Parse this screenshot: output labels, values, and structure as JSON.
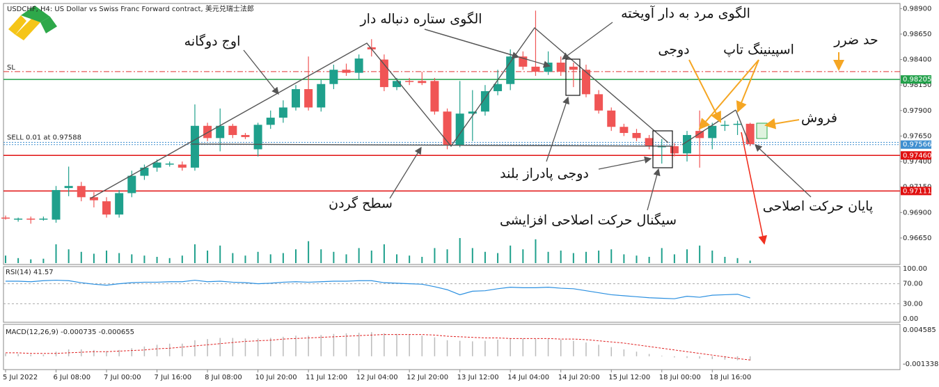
{
  "header": {
    "title": "USDCHF, H4:  US Dollar vs Swiss Franc Forward contract, 美元兑瑞士法郎"
  },
  "annotations": [
    "اوج دوگانه",
    "الگوی ستاره دنباله دار",
    "الگوی مرد به دار آویخته",
    "حد ضرر",
    "دوجی",
    "اسپینینگ تاپ",
    "فروش",
    "دوجی پادراز بلند",
    "سطح گردن",
    "پایان حرکت اصلاحی",
    "سیگنال حرکت اصلاحی افزایشی"
  ],
  "chart_data": {
    "type": "candlestick",
    "categories": [
      "5 Jul 2022",
      null,
      null,
      null,
      "6 Jul 08:00",
      null,
      null,
      null,
      "7 Jul 00:00",
      null,
      null,
      null,
      "7 Jul 16:00",
      null,
      null,
      null,
      "8 Jul 08:00",
      null,
      null,
      null,
      "10 Jul 20:00",
      null,
      null,
      null,
      "11 Jul 12:00",
      null,
      null,
      null,
      "12 Jul 04:00",
      null,
      null,
      null,
      "12 Jul 20:00",
      null,
      null,
      null,
      "13 Jul 12:00",
      null,
      null,
      null,
      "14 Jul 04:00",
      null,
      null,
      null,
      "14 Jul 20:00",
      null,
      null,
      null,
      "15 Jul 12:00",
      null,
      null,
      null,
      "18 Jul 00:00",
      null,
      null,
      null,
      "18 Jul 16:00",
      null,
      null,
      null
    ],
    "candles": [
      [
        0.9685,
        0.9687,
        0.9683,
        0.9684
      ],
      [
        0.9683,
        0.9685,
        0.9681,
        0.9684
      ],
      [
        0.9684,
        0.9686,
        0.9679,
        0.9683
      ],
      [
        0.9683,
        0.9686,
        0.9682,
        0.9684
      ],
      [
        0.9683,
        0.9716,
        0.968,
        0.9712
      ],
      [
        0.9714,
        0.9735,
        0.9706,
        0.9716
      ],
      [
        0.9716,
        0.972,
        0.9701,
        0.9705
      ],
      [
        0.9705,
        0.971,
        0.9695,
        0.9702
      ],
      [
        0.9701,
        0.9705,
        0.9685,
        0.9688
      ],
      [
        0.9688,
        0.9712,
        0.9685,
        0.9709
      ],
      [
        0.9709,
        0.9731,
        0.9705,
        0.9726
      ],
      [
        0.9726,
        0.9737,
        0.9722,
        0.9734
      ],
      [
        0.9734,
        0.9742,
        0.973,
        0.9739
      ],
      [
        0.9737,
        0.974,
        0.9735,
        0.9738
      ],
      [
        0.9737,
        0.974,
        0.9731,
        0.9734
      ],
      [
        0.9734,
        0.9796,
        0.9731,
        0.9775
      ],
      [
        0.9775,
        0.9778,
        0.976,
        0.9763
      ],
      [
        0.9763,
        0.9792,
        0.975,
        0.9775
      ],
      [
        0.9775,
        0.9777,
        0.9763,
        0.9766
      ],
      [
        0.9766,
        0.9768,
        0.9762,
        0.9764
      ],
      [
        0.9752,
        0.9778,
        0.9745,
        0.9776
      ],
      [
        0.9776,
        0.979,
        0.9772,
        0.9783
      ],
      [
        0.9783,
        0.98,
        0.9778,
        0.9793
      ],
      [
        0.9793,
        0.9815,
        0.979,
        0.9811
      ],
      [
        0.9811,
        0.9843,
        0.979,
        0.9793
      ],
      [
        0.9793,
        0.982,
        0.9789,
        0.9816
      ],
      [
        0.9816,
        0.9835,
        0.9811,
        0.983
      ],
      [
        0.983,
        0.9836,
        0.9824,
        0.9827
      ],
      [
        0.9827,
        0.9845,
        0.982,
        0.9841
      ],
      [
        0.9852,
        0.986,
        0.9843,
        0.985
      ],
      [
        0.984,
        0.9845,
        0.9809,
        0.9813
      ],
      [
        0.9813,
        0.9822,
        0.981,
        0.9819
      ],
      [
        0.9819,
        0.9822,
        0.9815,
        0.9818
      ],
      [
        0.9819,
        0.9828,
        0.9815,
        0.9817
      ],
      [
        0.9819,
        0.9822,
        0.9786,
        0.9789
      ],
      [
        0.9789,
        0.9792,
        0.9752,
        0.9756
      ],
      [
        0.9756,
        0.9819,
        0.9754,
        0.9787
      ],
      [
        0.9787,
        0.981,
        0.976,
        0.9789
      ],
      [
        0.9789,
        0.9815,
        0.9785,
        0.9809
      ],
      [
        0.9809,
        0.983,
        0.9805,
        0.9816
      ],
      [
        0.9816,
        0.985,
        0.981,
        0.9843
      ],
      [
        0.9843,
        0.9848,
        0.983,
        0.9833
      ],
      [
        0.9833,
        0.9888,
        0.9824,
        0.9828
      ],
      [
        0.9828,
        0.9848,
        0.9825,
        0.9837
      ],
      [
        0.9837,
        0.9843,
        0.9824,
        0.9828
      ],
      [
        0.9833,
        0.9837,
        0.9813,
        0.983
      ],
      [
        0.983,
        0.9835,
        0.9803,
        0.9806
      ],
      [
        0.9806,
        0.981,
        0.9787,
        0.979
      ],
      [
        0.979,
        0.9793,
        0.977,
        0.9774
      ],
      [
        0.9774,
        0.9777,
        0.9765,
        0.9768
      ],
      [
        0.9768,
        0.9772,
        0.976,
        0.9763
      ],
      [
        0.9763,
        0.9766,
        0.9752,
        0.9755
      ],
      [
        0.9755,
        0.9762,
        0.9738,
        0.9755
      ],
      [
        0.9755,
        0.9758,
        0.9745,
        0.9748
      ],
      [
        0.9748,
        0.977,
        0.974,
        0.9766
      ],
      [
        0.977,
        0.979,
        0.9734,
        0.9763
      ],
      [
        0.9763,
        0.9778,
        0.9752,
        0.9775
      ],
      [
        0.9775,
        0.978,
        0.977,
        0.9776
      ],
      [
        0.9776,
        0.978,
        0.9766,
        0.9777
      ],
      [
        0.9777,
        0.9778,
        0.9755,
        0.9757
      ]
    ],
    "up_color": "#1fa08c",
    "down_color": "#f05555",
    "volumes": [
      12,
      8,
      6,
      7,
      30,
      22,
      18,
      15,
      20,
      16,
      14,
      12,
      10,
      8,
      12,
      30,
      20,
      28,
      16,
      12,
      18,
      14,
      16,
      22,
      35,
      22,
      18,
      14,
      24,
      20,
      30,
      14,
      12,
      10,
      24,
      22,
      40,
      24,
      18,
      16,
      28,
      22,
      38,
      18,
      20,
      16,
      18,
      20,
      22,
      14,
      12,
      10,
      24,
      14,
      22,
      28,
      20,
      10,
      8,
      4
    ],
    "ylim": [
      0.9639,
      0.9895
    ],
    "yticks": [
      {
        "value": 0.989,
        "label": "0.98900"
      },
      {
        "value": 0.9865,
        "label": "0.98650"
      },
      {
        "value": 0.984,
        "label": "0.98400"
      },
      {
        "value": 0.9815,
        "label": "0.98150"
      },
      {
        "value": 0.979,
        "label": "0.97900"
      },
      {
        "value": 0.9765,
        "label": "0.97650"
      },
      {
        "value": 0.974,
        "label": "0.97400"
      },
      {
        "value": 0.9715,
        "label": "0.97150"
      },
      {
        "value": 0.969,
        "label": "0.96900"
      },
      {
        "value": 0.9665,
        "label": "0.96650"
      }
    ],
    "sl": {
      "label": "SL",
      "value": 0.98282,
      "color": "#e03030"
    },
    "order": {
      "label": "SELL 0.01 at 0.97588",
      "value": 0.97588,
      "color": "#3f8fd0"
    },
    "price_levels": [
      {
        "value": 0.98205,
        "label": "0.98205",
        "color": "#22a04a"
      },
      {
        "value": 0.97566,
        "label": "0.97566",
        "color": "#3f8fd0"
      },
      {
        "value": 0.9746,
        "label": "0.97460",
        "color": "#e01010"
      },
      {
        "value": 0.97111,
        "label": "0.97111",
        "color": "#e01010"
      }
    ],
    "rsi": {
      "title": "RSI(14) 41.57",
      "color": "#2a8fe0",
      "ylim": [
        0,
        100
      ],
      "yticks": [
        {
          "value": 100,
          "label": "100.00"
        },
        {
          "value": 70,
          "label": "70.00"
        },
        {
          "value": 30,
          "label": "30.00"
        },
        {
          "value": 0,
          "label": "0.00"
        }
      ],
      "values": [
        75,
        75,
        74,
        76,
        77,
        76,
        72,
        69,
        67,
        70,
        72,
        73,
        73,
        74,
        74,
        77,
        74,
        75,
        73,
        72,
        70,
        71,
        73,
        74,
        73,
        74,
        75,
        75,
        76,
        76,
        72,
        71,
        70,
        69,
        64,
        58,
        48,
        55,
        56,
        60,
        63,
        62,
        62,
        63,
        61,
        60,
        56,
        52,
        48,
        46,
        44,
        42,
        41,
        40,
        45,
        43,
        47,
        48,
        49,
        41.57
      ]
    },
    "macd": {
      "title": "MACD(12,26,9) -0.000735 -0.000655",
      "ylim": [
        -0.00233,
        0.00557
      ],
      "yticks": [
        0.004585,
        -0.001338
      ],
      "signal_color": "#e02020",
      "values": [
        0.0005,
        0.0004,
        0.0003,
        0.0003,
        0.0008,
        0.0012,
        0.0012,
        0.0011,
        0.0009,
        0.0011,
        0.0014,
        0.0017,
        0.002,
        0.0022,
        0.0022,
        0.0028,
        0.003,
        0.0032,
        0.0032,
        0.0031,
        0.0031,
        0.0032,
        0.0034,
        0.0036,
        0.0036,
        0.0037,
        0.0039,
        0.004,
        0.0041,
        0.0042,
        0.004,
        0.0039,
        0.0038,
        0.0036,
        0.0033,
        0.0028,
        0.0027,
        0.0026,
        0.0027,
        0.0029,
        0.0031,
        0.0031,
        0.003,
        0.003,
        0.0029,
        0.0027,
        0.0024,
        0.002,
        0.0016,
        0.0012,
        0.0008,
        0.0004,
        0.0001,
        -0.0002,
        -0.0003,
        -0.0004,
        -0.0005,
        -0.0006,
        -0.0007,
        -0.000735
      ],
      "signal": [
        0.0006,
        0.0006,
        0.0005,
        0.0005,
        0.0005,
        0.0006,
        0.0007,
        0.0008,
        0.0008,
        0.0009,
        0.001,
        0.0011,
        0.0013,
        0.0014,
        0.0016,
        0.0018,
        0.002,
        0.0022,
        0.0024,
        0.0026,
        0.0027,
        0.0028,
        0.003,
        0.0031,
        0.0032,
        0.0033,
        0.0034,
        0.0035,
        0.0036,
        0.0037,
        0.0038,
        0.0038,
        0.0038,
        0.0038,
        0.0037,
        0.0035,
        0.0034,
        0.0033,
        0.0032,
        0.0032,
        0.0031,
        0.0031,
        0.0031,
        0.0031,
        0.003,
        0.003,
        0.0029,
        0.0027,
        0.0025,
        0.0023,
        0.002,
        0.0017,
        0.0014,
        0.0011,
        0.0008,
        0.0005,
        0.0002,
        -0.0001,
        -0.0004,
        -0.000655
      ]
    }
  }
}
